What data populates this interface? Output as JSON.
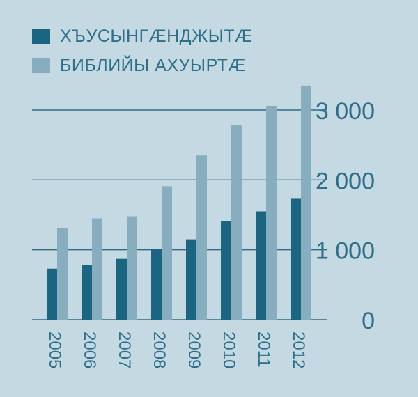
{
  "colors": {
    "background": "#c5d9e2",
    "series_dark": "#1a6581",
    "series_light": "#86aebe",
    "gridline": "#2d6d88",
    "text": "#2c6f8a"
  },
  "legend": [
    {
      "label": "ХЪУСЫНГÆНДЖЫТÆ"
    },
    {
      "label": "БИБЛИЙЫ АХУЫРТÆ"
    }
  ],
  "chart_data": {
    "type": "bar",
    "title": "",
    "xlabel": "",
    "ylabel": "",
    "categories": [
      "2005",
      "2006",
      "2007",
      "2008",
      "2009",
      "2010",
      "2011",
      "2012"
    ],
    "series": [
      {
        "name": "ХЪУСЫНГÆНДЖЫТÆ",
        "values": [
          730,
          780,
          870,
          1010,
          1150,
          1410,
          1550,
          1730
        ]
      },
      {
        "name": "БИБЛИЙЫ АХУЫРТÆ",
        "values": [
          1310,
          1450,
          1480,
          1910,
          2350,
          2780,
          3060,
          3350
        ]
      }
    ],
    "ylim": [
      0,
      3000
    ],
    "yticks": [
      0,
      1000,
      2000,
      3000
    ],
    "ytick_labels": [
      "0",
      "1 000",
      "2 000",
      "3 000"
    ],
    "yaxis_position": "right",
    "grid": true,
    "legend_position": "top-left"
  }
}
